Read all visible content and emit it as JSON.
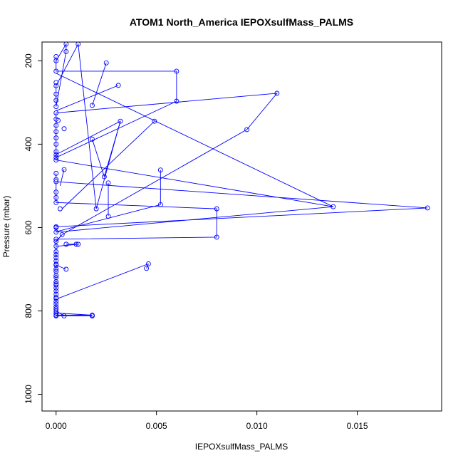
{
  "chart_data": {
    "type": "line",
    "title": "ATOM1 North_America IEPOXsulfMass_PALMS",
    "xlabel": "IEPOXsulfMass_PALMS",
    "ylabel": "Pressure (mbar)",
    "xlim": [
      -0.0007,
      0.0192
    ],
    "ylim": [
      1040,
      155
    ],
    "y_reversed": true,
    "grid": false,
    "legend": "none",
    "x_ticks": [
      0.0,
      0.005,
      0.01,
      0.015
    ],
    "x_tick_labels": [
      "0.000",
      "0.005",
      "0.010",
      "0.015"
    ],
    "y_ticks": [
      200,
      400,
      600,
      800,
      1000
    ],
    "y_tick_labels": [
      "200",
      "400",
      "600",
      "800",
      "1000"
    ],
    "series": [
      {
        "color": "#0000ff",
        "marker": "open-circle",
        "points": [
          [
            0.0,
            810
          ],
          [
            0.0018,
            810
          ],
          [
            0.0,
            805
          ],
          [
            0.0,
            795
          ],
          [
            0.0,
            783
          ],
          [
            0.0,
            770
          ],
          [
            0.0,
            760
          ],
          [
            0.0,
            745
          ],
          [
            0.0,
            730
          ],
          [
            0.0,
            715
          ],
          [
            0.0,
            700
          ],
          [
            0.0,
            688
          ],
          [
            0.0,
            672
          ],
          [
            0.0,
            658
          ],
          [
            0.0,
            645
          ],
          [
            0.0,
            628
          ],
          [
            0.008,
            623
          ],
          [
            0.008,
            555
          ],
          [
            0.0,
            540
          ],
          [
            0.0,
            528
          ],
          [
            0.0,
            515
          ],
          [
            0.0,
            490
          ],
          [
            0.0185,
            553
          ],
          [
            0.0,
            598
          ],
          [
            0.0,
            611
          ],
          [
            0.0138,
            550
          ],
          [
            0.0,
            438
          ],
          [
            0.0,
            425
          ],
          [
            0.0032,
            345
          ],
          [
            0.002,
            555
          ],
          [
            0.0011,
            160
          ],
          [
            0.0,
            260
          ],
          [
            0.0,
            280
          ],
          [
            0.0,
            295
          ],
          [
            0.0,
            310
          ],
          [
            0.0005,
            178
          ],
          [
            0.0005,
            160
          ],
          [
            0.0,
            200
          ],
          [
            0.0,
            225
          ],
          [
            0.006,
            225
          ],
          [
            0.006,
            297
          ],
          [
            0.0,
            432
          ],
          [
            0.0,
            418
          ],
          [
            0.0,
            400
          ],
          [
            0.0,
            385
          ],
          [
            0.0,
            370
          ],
          [
            0.0,
            355
          ],
          [
            0.0,
            340
          ],
          [
            0.0,
            325
          ],
          [
            0.011,
            278
          ],
          [
            0.0095,
            365
          ],
          [
            0.0003,
            617
          ],
          [
            0.0,
            633
          ],
          [
            0.0,
            690
          ],
          [
            0.0,
            705
          ],
          [
            0.0,
            720
          ],
          [
            0.0,
            738
          ],
          [
            0.0,
            752
          ],
          [
            0.0,
            768
          ],
          [
            0.0,
            777
          ],
          [
            0.0,
            790
          ],
          [
            0.0,
            800
          ],
          [
            0.0004,
            812
          ],
          [
            0.0018,
            812
          ],
          [
            0.0,
            812
          ]
        ],
        "extra_segments": [
          [
            [
              0.0003,
              555
            ],
            [
              0.0049,
              345
            ]
          ],
          [
            [
              0.0018,
              307
            ],
            [
              0.0025,
              205
            ]
          ],
          [
            [
              0.0018,
              388
            ],
            [
              0.0024,
              478
            ]
          ],
          [
            [
              0.0024,
              478
            ],
            [
              0.0032,
              346
            ]
          ],
          [
            [
              0.0026,
              493
            ],
            [
              0.0026,
              572
            ]
          ],
          [
            [
              0.0052,
              462
            ],
            [
              0.0052,
              545
            ]
          ],
          [
            [
              0.0052,
              545
            ],
            [
              0.0,
              610
            ]
          ],
          [
            [
              0.0005,
              640
            ],
            [
              0.0011,
              640
            ]
          ],
          [
            [
              0.0011,
              640
            ],
            [
              0.0,
              645
            ]
          ],
          [
            [
              0.0045,
              698
            ],
            [
              0.0046,
              687
            ]
          ],
          [
            [
              0.0046,
              687
            ],
            [
              0.0001,
              770
            ]
          ],
          [
            [
              0.0,
              230
            ],
            [
              0.0138,
              550
            ]
          ],
          [
            [
              0.0,
              320
            ],
            [
              0.0031,
              259
            ]
          ],
          [
            [
              0.0,
              203
            ],
            [
              0.0,
              190
            ]
          ],
          [
            [
              0.0,
              485
            ],
            [
              0.0,
              470
            ]
          ],
          [
            [
              0.0004,
              460
            ],
            [
              0.0002,
              500
            ]
          ],
          [
            [
              0.0005,
              700
            ],
            [
              0.0,
              690
            ]
          ]
        ],
        "extra_points": [
          [
            0.0004,
            363
          ],
          [
            0.0001,
            343
          ],
          [
            0.0004,
            461
          ],
          [
            0.0002,
            555
          ],
          [
            0.0026,
            573
          ],
          [
            0.0031,
            259
          ],
          [
            0.0025,
            205
          ],
          [
            0.0018,
            307
          ],
          [
            0.0018,
            388
          ],
          [
            0.0024,
            478
          ],
          [
            0.0026,
            493
          ],
          [
            0.0049,
            345
          ],
          [
            0.0052,
            462
          ],
          [
            0.0052,
            545
          ],
          [
            0.0005,
            640
          ],
          [
            0.001,
            640
          ],
          [
            0.0011,
            640
          ],
          [
            0.0045,
            698
          ],
          [
            0.0046,
            687
          ],
          [
            0.0005,
            700
          ],
          [
            0.0,
            252
          ],
          [
            0.0,
            190
          ],
          [
            0.0,
            485
          ],
          [
            0.0,
            470
          ],
          [
            0.0,
            600
          ],
          [
            0.0,
            665
          ],
          [
            0.0,
            680
          ],
          [
            0.0,
            735
          ]
        ]
      }
    ]
  }
}
